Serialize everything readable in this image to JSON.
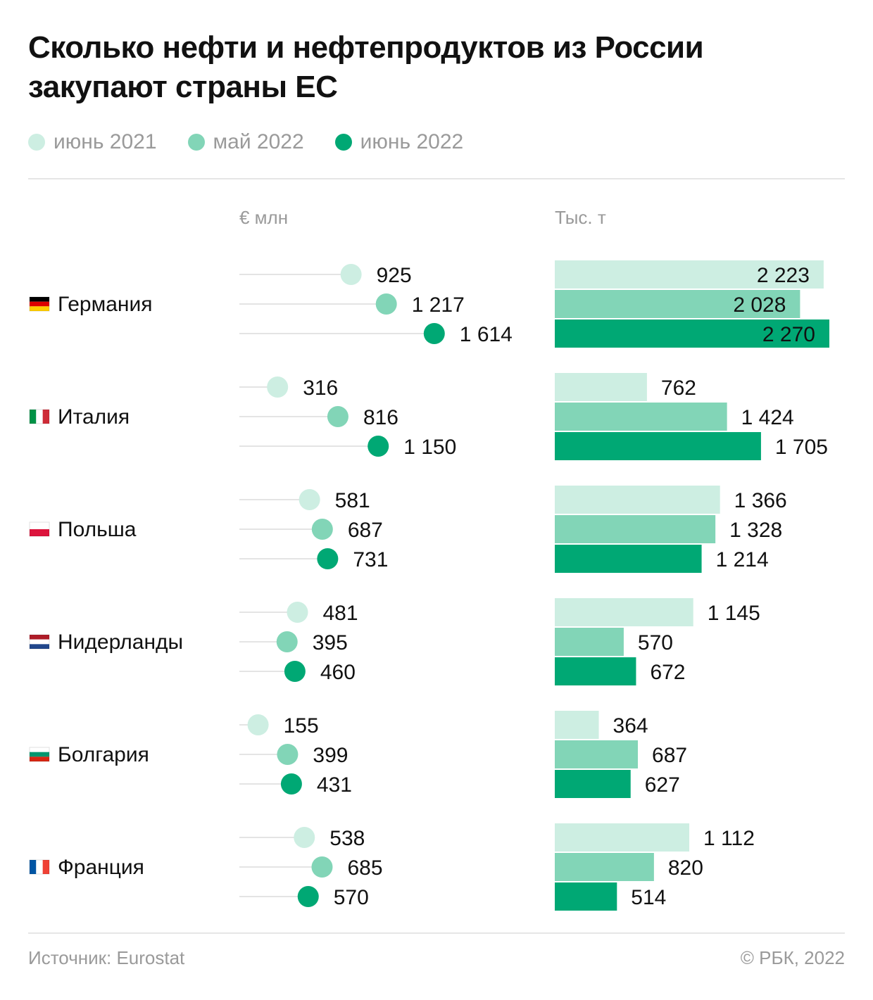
{
  "title": "Сколько нефти и нефтепродуктов из России закупают страны ЕС",
  "colors": {
    "light": "#cdeee2",
    "mid": "#82d5b7",
    "dark": "#00a874",
    "track": "#e4e4e4"
  },
  "chart_data": {
    "type": "bar",
    "title": "Сколько нефти и нефтепродуктов из России закупают страны ЕС",
    "legend_position": "top-left",
    "series_names": [
      "июнь 2021",
      "май 2022",
      "июнь 2022"
    ],
    "categories": [
      "Германия",
      "Италия",
      "Польша",
      "Нидерланды",
      "Болгария",
      "Франция"
    ],
    "panels": [
      {
        "unit": "€ млн",
        "style": "lollipop",
        "series": [
          {
            "name": "июнь 2021",
            "values": [
              925,
              316,
              581,
              481,
              155,
              538
            ],
            "labels": [
              "925",
              "316",
              "581",
              "481",
              "155",
              "538"
            ]
          },
          {
            "name": "май 2022",
            "values": [
              1217,
              816,
              687,
              395,
              399,
              685
            ],
            "labels": [
              "1 217",
              "816",
              "687",
              "395",
              "399",
              "685"
            ]
          },
          {
            "name": "июнь 2022",
            "values": [
              1614,
              1150,
              731,
              460,
              431,
              570
            ],
            "labels": [
              "1 614",
              "1 150",
              "731",
              "460",
              "431",
              "570"
            ]
          }
        ]
      },
      {
        "unit": "Тыс. т",
        "style": "bar",
        "series": [
          {
            "name": "июнь 2021",
            "values": [
              2223,
              762,
              1366,
              1145,
              364,
              1112
            ],
            "labels": [
              "2 223",
              "762",
              "1 366",
              "1 145",
              "364",
              "1 112"
            ]
          },
          {
            "name": "май 2022",
            "values": [
              2028,
              1424,
              1328,
              570,
              687,
              820
            ],
            "labels": [
              "2 028",
              "1 424",
              "1 328",
              "570",
              "687",
              "820"
            ]
          },
          {
            "name": "июнь 2022",
            "values": [
              2270,
              1705,
              1214,
              672,
              627,
              514
            ],
            "labels": [
              "2 270",
              "1 705",
              "1 214",
              "672",
              "627",
              "514"
            ]
          }
        ]
      }
    ]
  },
  "flags": [
    [
      "#000000",
      "#dd0000",
      "#ffce00"
    ],
    [
      "#009246",
      "#ffffff",
      "#ce2b37"
    ],
    [
      "#ffffff",
      "#dc143c"
    ],
    [
      "#ae1c28",
      "#ffffff",
      "#21468b"
    ],
    [
      "#ffffff",
      "#00966e",
      "#d62612"
    ],
    [
      "#0055a4",
      "#ffffff",
      "#ef4135"
    ]
  ],
  "flag_orientation": [
    "horizontal",
    "vertical",
    "horizontal",
    "horizontal",
    "horizontal",
    "vertical"
  ],
  "source": "Источник: Eurostat",
  "credit": "© РБК, 2022"
}
